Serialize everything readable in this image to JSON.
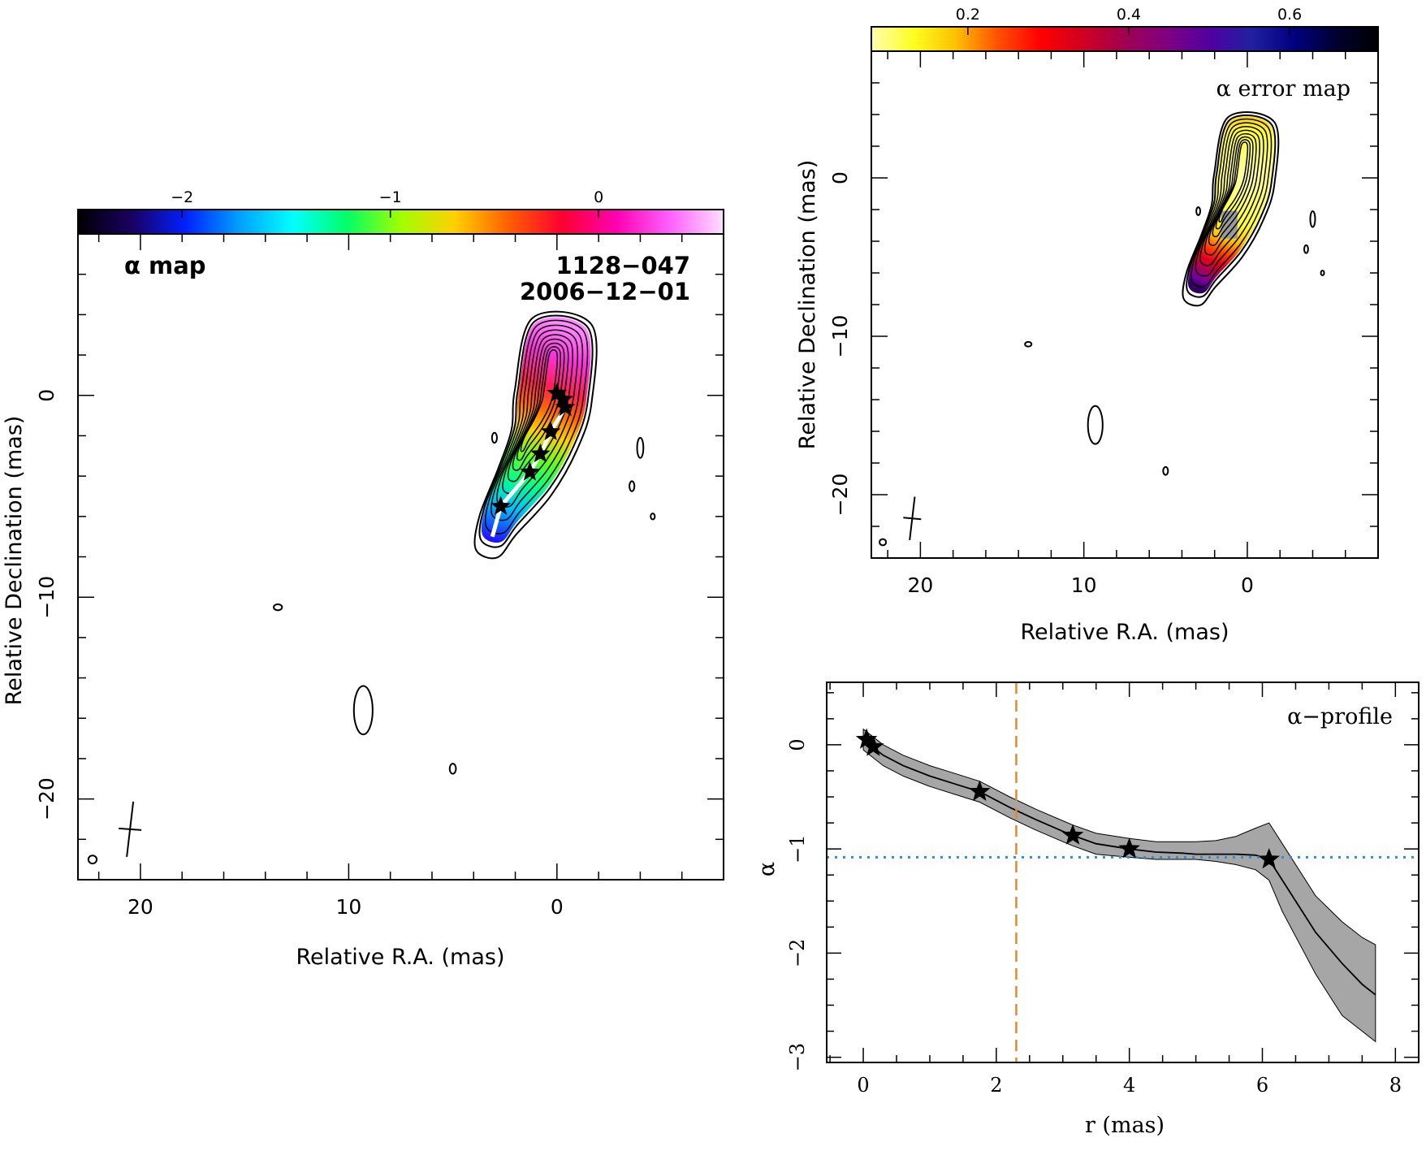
{
  "chart_data": [
    {
      "id": "alpha-map",
      "type": "heatmap",
      "annotation": "α map",
      "source": "1128−047",
      "date": "2006−12−01",
      "xlabel": "Relative R.A. (mas)",
      "ylabel": "Relative Declination (mas)",
      "xlim": [
        23,
        -8
      ],
      "ylim": [
        -24,
        8
      ],
      "xticks": [
        {
          "v": 20,
          "t": "20"
        },
        {
          "v": 10,
          "t": "10"
        },
        {
          "v": 0,
          "t": "0"
        }
      ],
      "yticks": [
        {
          "v": 0,
          "t": "0"
        },
        {
          "v": -10,
          "t": "−10"
        },
        {
          "v": -20,
          "t": "−20"
        }
      ],
      "colorbar": {
        "range": [
          -2.5,
          0.6
        ],
        "colors": [
          "#000000",
          "#1a0060",
          "#0020ff",
          "#00a0ff",
          "#00ffff",
          "#00ff66",
          "#a0ff00",
          "#ffd000",
          "#ff6000",
          "#ff0030",
          "#ff00b0",
          "#ff60ff",
          "#ffe0ff"
        ],
        "ticks": [
          {
            "v": -2,
            "t": "−2"
          },
          {
            "v": -1,
            "t": "−1"
          },
          {
            "v": 0,
            "t": "0"
          }
        ]
      },
      "components": [
        {
          "x": 0.0,
          "y": 0.1
        },
        {
          "x": -0.3,
          "y": -0.2
        },
        {
          "x": -0.4,
          "y": -0.6
        },
        {
          "x": 0.3,
          "y": -1.8
        },
        {
          "x": 0.8,
          "y": -2.9
        },
        {
          "x": 1.3,
          "y": -3.8
        },
        {
          "x": 2.7,
          "y": -5.5
        }
      ],
      "beam": {
        "x": 20.5,
        "y": -21.5
      }
    },
    {
      "id": "alpha-error-map",
      "type": "heatmap",
      "annotation": "α error map",
      "xlabel": "Relative R.A. (mas)",
      "ylabel": "Relative Declination (mas)",
      "xlim": [
        23,
        -8
      ],
      "ylim": [
        -24,
        8
      ],
      "xticks": [
        {
          "v": 20,
          "t": "20"
        },
        {
          "v": 10,
          "t": "10"
        },
        {
          "v": 0,
          "t": "0"
        }
      ],
      "yticks": [
        {
          "v": 0,
          "t": "0"
        },
        {
          "v": -10,
          "t": "−10"
        },
        {
          "v": -20,
          "t": "−20"
        }
      ],
      "colorbar": {
        "range": [
          0.08,
          0.71
        ],
        "colors": [
          "#ffffb0",
          "#ffff20",
          "#ffc000",
          "#ff5000",
          "#ff0000",
          "#d00020",
          "#a00050",
          "#800080",
          "#5000a0",
          "#2020a0",
          "#000080",
          "#000030",
          "#000000"
        ],
        "ticks": [
          {
            "v": 0.2,
            "t": "0.2"
          },
          {
            "v": 0.4,
            "t": "0.4"
          },
          {
            "v": 0.6,
            "t": "0.6"
          }
        ]
      },
      "beam": {
        "x": 20.5,
        "y": -21.5
      }
    },
    {
      "id": "alpha-profile",
      "type": "line",
      "annotation": "α−profile",
      "xlabel": "r (mas)",
      "ylabel": "α",
      "xlim": [
        -0.55,
        8.35
      ],
      "ylim": [
        -3.05,
        0.6
      ],
      "xticks": [
        {
          "v": 0,
          "t": "0"
        },
        {
          "v": 2,
          "t": "2"
        },
        {
          "v": 4,
          "t": "4"
        },
        {
          "v": 6,
          "t": "6"
        },
        {
          "v": 8,
          "t": "8"
        }
      ],
      "yticks": [
        {
          "v": 0,
          "t": "0"
        },
        {
          "v": -1,
          "t": "−1"
        },
        {
          "v": -2,
          "t": "−2"
        },
        {
          "v": -3,
          "t": "−3"
        }
      ],
      "series": [
        {
          "x": [
            0.0,
            0.3,
            0.6,
            1.0,
            1.4,
            1.75,
            2.2,
            2.6,
            3.0,
            3.15,
            3.5,
            4.0,
            4.4,
            4.8,
            5.0,
            5.3,
            5.6,
            5.9,
            6.1,
            6.3,
            6.8,
            7.2,
            7.5,
            7.7
          ],
          "values": [
            0.05,
            -0.1,
            -0.2,
            -0.3,
            -0.38,
            -0.45,
            -0.6,
            -0.72,
            -0.83,
            -0.87,
            -0.95,
            -1.0,
            -1.03,
            -1.04,
            -1.05,
            -1.05,
            -1.05,
            -1.06,
            -1.1,
            -1.3,
            -1.8,
            -2.1,
            -2.3,
            -2.4
          ],
          "lower": [
            -0.05,
            -0.2,
            -0.3,
            -0.4,
            -0.48,
            -0.55,
            -0.7,
            -0.82,
            -0.93,
            -0.97,
            -1.05,
            -1.08,
            -1.1,
            -1.1,
            -1.1,
            -1.12,
            -1.15,
            -1.2,
            -1.3,
            -1.6,
            -2.2,
            -2.6,
            -2.75,
            -2.85
          ],
          "upper": [
            0.15,
            0.0,
            -0.1,
            -0.2,
            -0.28,
            -0.35,
            -0.5,
            -0.62,
            -0.73,
            -0.77,
            -0.85,
            -0.9,
            -0.93,
            -0.93,
            -0.93,
            -0.92,
            -0.88,
            -0.8,
            -0.75,
            -0.95,
            -1.45,
            -1.7,
            -1.85,
            -1.92
          ]
        }
      ],
      "components": [
        {
          "x": 0.05,
          "y": 0.05
        },
        {
          "x": 0.15,
          "y": -0.02
        },
        {
          "x": 1.75,
          "y": -0.45
        },
        {
          "x": 3.15,
          "y": -0.87
        },
        {
          "x": 4.0,
          "y": -1.0
        },
        {
          "x": 6.1,
          "y": -1.1
        }
      ],
      "vline_x": 2.3,
      "hline_y": -1.08,
      "vline_color": "#e08a30",
      "hline_color": "#2a8de0"
    }
  ]
}
